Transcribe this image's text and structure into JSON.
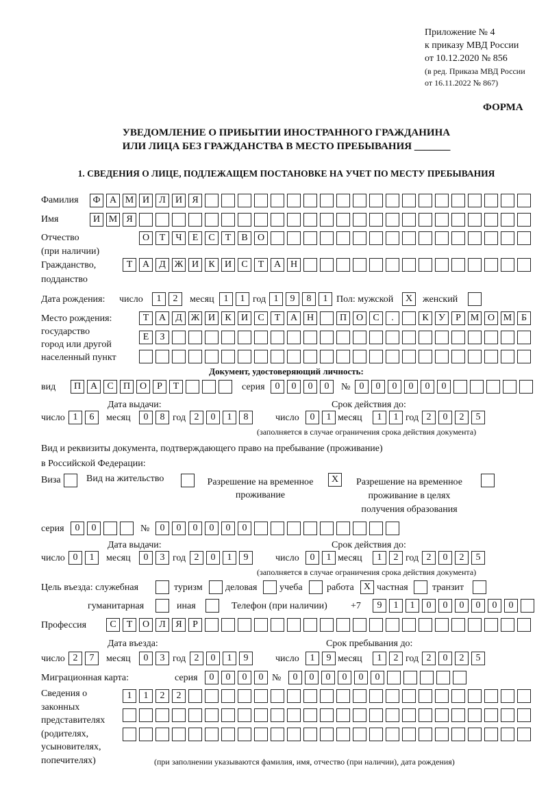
{
  "header": {
    "appendix": [
      "Приложение № 4",
      "к приказу МВД России",
      "от 10.12.2020 № 856"
    ],
    "revision": [
      "(в ред. Приказа МВД России",
      "от 16.11.2022 № 867)"
    ],
    "form_label": "ФОРМА",
    "title_1": "УВЕДОМЛЕНИЕ О ПРИБЫТИИ ИНОСТРАННОГО ГРАЖДАНИНА",
    "title_2": "ИЛИ ЛИЦА БЕЗ ГРАЖДАНСТВА В МЕСТО ПРЕБЫВАНИЯ _______",
    "section_1": "1. СВЕДЕНИЯ О ЛИЦЕ, ПОДЛЕЖАЩЕМ ПОСТАНОВКЕ НА УЧЕТ ПО МЕСТУ ПРЕБЫВАНИЯ"
  },
  "labels": {
    "surname": "Фамилия",
    "name": "Имя",
    "patronymic_1": "Отчество",
    "patronymic_2": "(при наличии)",
    "citizenship_1": "Гражданство,",
    "citizenship_2": "подданство",
    "birth_date": "Дата рождения:",
    "day": "число",
    "month": "месяц",
    "year": "год",
    "sex": "Пол: мужской",
    "female": "женский",
    "birth_place": [
      "Место рождения:",
      "государство",
      "город или другой",
      "населенный пункт"
    ],
    "id_doc": "Документ, удостоверяющий личность:",
    "kind": "вид",
    "series": "серия",
    "number": "№",
    "issue_date": "Дата выдачи:",
    "valid_until": "Срок действия до:",
    "validity_note": "(заполняется в случае ограничения срока действия документа)",
    "stay_doc_1": "Вид и реквизиты документа, подтверждающего право на пребывание (проживание)",
    "stay_doc_2": "в Российской Федерации:",
    "visa": "Виза",
    "residence": "Вид на жительство",
    "trp": [
      "Разрешение на временное",
      "проживание"
    ],
    "trp_edu": [
      "Разрешение на временное",
      "проживание в целях",
      "получения образования"
    ],
    "purpose": "Цель въезда: служебная",
    "tourism": "туризм",
    "business": "деловая",
    "study": "учеба",
    "work": "работа",
    "private": "частная",
    "transit": "транзит",
    "humanitarian": "гуманитарная",
    "other": "иная",
    "phone": "Телефон (при наличии)",
    "phone_prefix": "+7",
    "profession": "Профессия",
    "entry_date": "Дата въезда:",
    "stay_until": "Срок пребывания до:",
    "migration_card": "Миграционная карта:",
    "representatives": [
      "Сведения о",
      "законных",
      "представителях",
      "(родителях,",
      "усыновителях,",
      "попечителях)"
    ],
    "representatives_note": "(при заполнении указываются фамилия, имя, отчество (при наличии), дата рождения)"
  },
  "person": {
    "surname": "ФАМИЛИЯ",
    "name": "ИМЯ",
    "patronymic": "ОТЧЕСТВО",
    "citizenship": "ТАДЖИКИСТАН",
    "birth_day": "12",
    "birth_month": "11",
    "birth_year": "1981",
    "male": "X",
    "female": "",
    "birth_place_1": "ТАДЖИКИСТАН ПОС. КУРМОМБ",
    "birth_place_2": "ЕЗ",
    "birth_place_3": ""
  },
  "id_document": {
    "kind": "ПАСПОРТ",
    "series": "0000",
    "number": "000000",
    "issue_day": "16",
    "issue_month": "08",
    "issue_year": "2018",
    "valid_day": "01",
    "valid_month": "11",
    "valid_year": "2025"
  },
  "stay_document": {
    "visa": "",
    "residence": "",
    "trp": "X",
    "trp_edu": "",
    "series": "00",
    "number": "000000",
    "issue_day": "01",
    "issue_month": "03",
    "issue_year": "2019",
    "valid_day": "01",
    "valid_month": "12",
    "valid_year": "2025"
  },
  "purpose": {
    "service": "",
    "tourism": "",
    "business": "",
    "study": "",
    "work": "X",
    "private": "",
    "transit": "",
    "humanitarian": "",
    "other": ""
  },
  "phone": "911000000",
  "profession": "СТОЛЯР",
  "entry": {
    "day": "27",
    "month": "03",
    "year": "2019",
    "until_day": "19",
    "until_month": "12",
    "until_year": "2025"
  },
  "migration_card": {
    "series": "0000",
    "number": "000000"
  },
  "representatives": {
    "line_1": "1122",
    "line_2": "",
    "line_3": ""
  }
}
